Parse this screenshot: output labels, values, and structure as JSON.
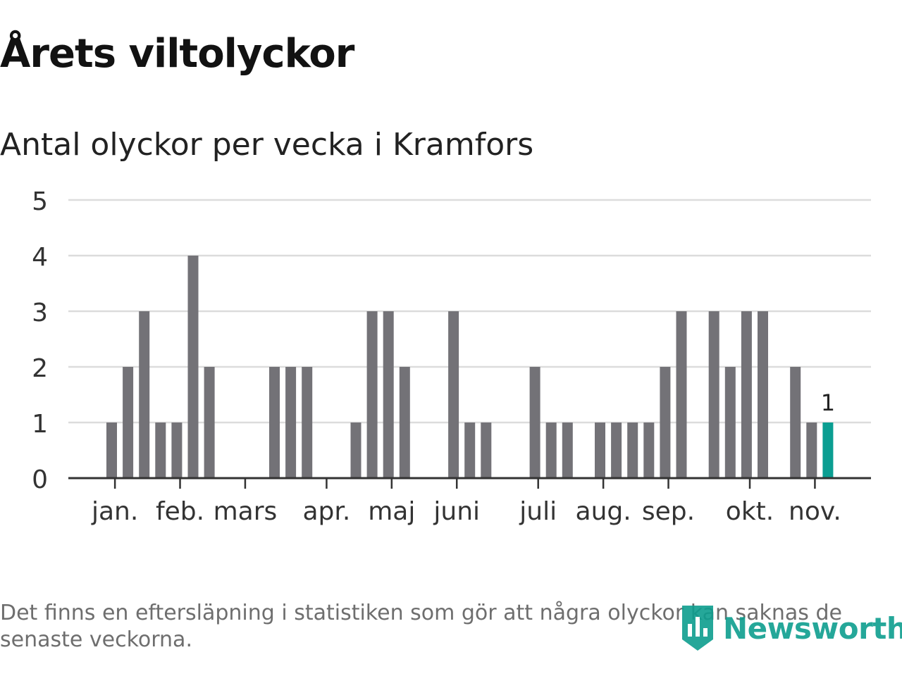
{
  "title": "Årets viltolyckor",
  "subtitle": "Antal olyckor per vecka i Kramfors",
  "footnote": "Det finns en eftersläpning i statistiken som gör att några olyckor kan saknas de senaste veckorna.",
  "brand": {
    "name": "Newsworthy",
    "icon": "newsworthy-logo-icon"
  },
  "colors": {
    "bar": "#737277",
    "highlight": "#0b9e92",
    "grid": "#dcdcdc",
    "axis": "#333333"
  },
  "chart_data": {
    "type": "bar",
    "title": "Antal olyckor per vecka i Kramfors",
    "xlabel": "",
    "ylabel": "",
    "ylim": [
      0,
      5
    ],
    "yticks": [
      0,
      1,
      2,
      3,
      4,
      5
    ],
    "grid": true,
    "x_unit": "week",
    "weeks": [
      2,
      3,
      4,
      5,
      6,
      7,
      8,
      9,
      10,
      11,
      12,
      13,
      14,
      15,
      16,
      17,
      18,
      19,
      20,
      21,
      22,
      23,
      24,
      25,
      26,
      27,
      28,
      29,
      30,
      31,
      32,
      33,
      34,
      35,
      36,
      37,
      38,
      39,
      40,
      41,
      42,
      43,
      44,
      45,
      46
    ],
    "values": [
      1,
      2,
      3,
      1,
      1,
      4,
      2,
      0,
      0,
      0,
      2,
      2,
      2,
      0,
      0,
      1,
      3,
      3,
      2,
      0,
      0,
      3,
      1,
      1,
      0,
      0,
      2,
      1,
      1,
      0,
      1,
      1,
      1,
      1,
      2,
      3,
      0,
      3,
      2,
      3,
      3,
      0,
      2,
      1,
      1
    ],
    "highlight_week": 46,
    "highlight_label": "1",
    "month_ticks": [
      {
        "label": "jan.",
        "week": 2.2
      },
      {
        "label": "feb.",
        "week": 6.2
      },
      {
        "label": "mars",
        "week": 10.2
      },
      {
        "label": "apr.",
        "week": 15.2
      },
      {
        "label": "maj",
        "week": 19.2
      },
      {
        "label": "juni",
        "week": 23.2
      },
      {
        "label": "juli",
        "week": 28.2
      },
      {
        "label": "aug.",
        "week": 32.2
      },
      {
        "label": "sep.",
        "week": 36.2
      },
      {
        "label": "okt.",
        "week": 41.2
      },
      {
        "label": "nov.",
        "week": 45.2
      }
    ]
  }
}
